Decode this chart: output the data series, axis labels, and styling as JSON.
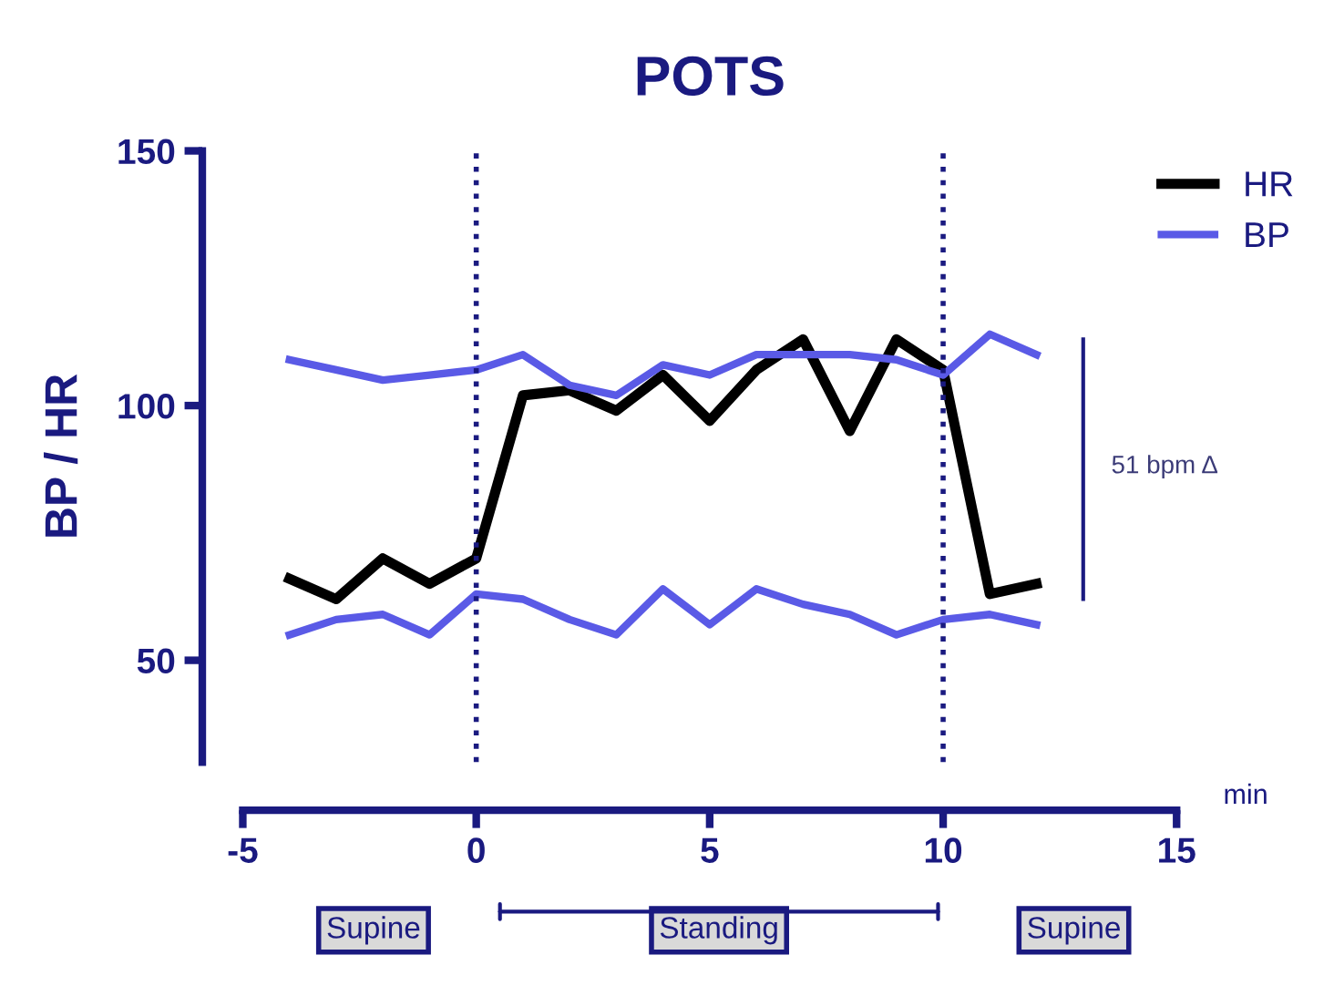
{
  "chart_data": {
    "type": "line",
    "title": "POTS",
    "xlabel": "min",
    "ylabel": "BP / HR",
    "x": [
      -4,
      -3,
      -2,
      -1,
      0,
      1,
      2,
      3,
      4,
      5,
      6,
      7,
      8,
      9,
      10,
      11,
      12
    ],
    "series": [
      {
        "name": "HR",
        "color": "#000000",
        "values": [
          66,
          62,
          70,
          65,
          70,
          102,
          103,
          99,
          106,
          97,
          107,
          113,
          95,
          113,
          107,
          63,
          65
        ]
      },
      {
        "name": "BP",
        "color": "#5a5ae6",
        "values": [
          109,
          107,
          105,
          106,
          107,
          110,
          104,
          102,
          108,
          106,
          110,
          110,
          110,
          109,
          106,
          114,
          110
        ]
      },
      {
        "color": "#5a5ae6",
        "values": [
          55,
          58,
          59,
          55,
          63,
          62,
          58,
          55,
          64,
          57,
          64,
          61,
          59,
          55,
          58,
          59,
          57
        ]
      },
      {
        "color": "#1a1a80",
        "x": [
          13,
          13
        ],
        "values": [
          62,
          113
        ]
      }
    ],
    "xlim": [
      -5,
      15
    ],
    "ylim": [
      30,
      150
    ],
    "xticks": [
      -5,
      0,
      5,
      10,
      15
    ],
    "yticks": [
      50,
      100,
      150
    ],
    "ref_lines": [
      {
        "axis": "x",
        "value": 0,
        "color": "#1a1a80",
        "line_style": "dotted"
      },
      {
        "axis": "x",
        "value": 10,
        "color": "#1a1a80",
        "line_style": "dotted"
      }
    ],
    "annotations": [
      {
        "text": "51 bpm Δ",
        "x": 13,
        "y": 88
      },
      "Supine",
      "Standing",
      "Supine"
    ],
    "legend": "top right",
    "grid": false,
    "marker": "none",
    "line_style": "solid"
  }
}
